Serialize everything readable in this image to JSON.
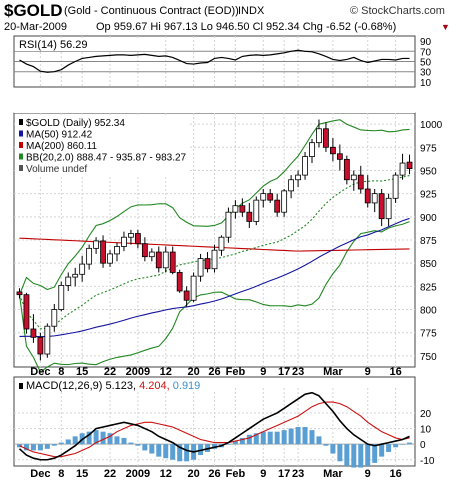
{
  "header": {
    "symbol": "$GOLD",
    "description": "(Gold - Continuous Contract (EOD))",
    "exchange": "INDX",
    "site": "© StockCharts.com",
    "date": "20-Mar-2009",
    "ohlc": "Op 959.67  Hi 967.13  Lo 946.50  Cl 952.34  Chg -6.52 (-0.68%)"
  },
  "chart_data": [
    {
      "type": "line",
      "panel": "rsi",
      "label": "RSI(14) 56.29",
      "yticks": [
        90,
        70,
        50,
        30,
        10
      ],
      "ylim": [
        0,
        100
      ],
      "ref_lines": [
        70,
        50,
        30
      ],
      "values": [
        53,
        45,
        40,
        31,
        29,
        30,
        34,
        43,
        50,
        56,
        58,
        60,
        61,
        62,
        63,
        63,
        62,
        63,
        64,
        62,
        60,
        61,
        58,
        52,
        46,
        45,
        47,
        48,
        56,
        58,
        56,
        53,
        60,
        62,
        63,
        62,
        63,
        65,
        67,
        70,
        72,
        70,
        69,
        65,
        60,
        54,
        52,
        54,
        58,
        52,
        48,
        51,
        54,
        54,
        53,
        56,
        56
      ]
    },
    {
      "type": "candlestick",
      "panel": "price",
      "legend": [
        {
          "name": "$GOLD (Daily) 952.34",
          "color": "#000000"
        },
        {
          "name": "MA(50) 912.42",
          "color": "#1515a0"
        },
        {
          "name": "MA(200) 860.11",
          "color": "#c00000"
        },
        {
          "name": "BB(20,2.0) 888.47 - 935.87 - 983.27",
          "color": "#228822"
        },
        {
          "name": "Volume undef",
          "color": "#555555"
        }
      ],
      "yticks": [
        1000,
        975,
        950,
        925,
        900,
        875,
        850,
        825,
        800,
        775,
        750
      ],
      "ylim": [
        738,
        1012
      ],
      "x_labels": [
        "Dec",
        "8",
        "15",
        "22",
        "2009",
        "12",
        "20",
        "26",
        "Feb",
        "9",
        "17",
        "23",
        "Mar",
        "9",
        "16"
      ],
      "candles": [
        [
          819,
          823,
          812,
          816
        ],
        [
          816,
          818,
          774,
          779
        ],
        [
          779,
          795,
          764,
          770
        ],
        [
          770,
          775,
          745,
          752
        ],
        [
          752,
          785,
          748,
          782
        ],
        [
          782,
          806,
          776,
          800
        ],
        [
          800,
          830,
          798,
          826
        ],
        [
          826,
          840,
          820,
          835
        ],
        [
          835,
          845,
          825,
          838
        ],
        [
          838,
          858,
          830,
          849
        ],
        [
          849,
          870,
          843,
          866
        ],
        [
          866,
          878,
          860,
          874
        ],
        [
          874,
          880,
          845,
          850
        ],
        [
          850,
          864,
          846,
          860
        ],
        [
          860,
          872,
          852,
          868
        ],
        [
          868,
          884,
          863,
          878
        ],
        [
          878,
          886,
          870,
          882
        ],
        [
          882,
          886,
          866,
          871
        ],
        [
          871,
          878,
          852,
          857
        ],
        [
          857,
          866,
          852,
          862
        ],
        [
          862,
          868,
          840,
          845
        ],
        [
          845,
          868,
          840,
          862
        ],
        [
          862,
          868,
          838,
          840
        ],
        [
          840,
          843,
          818,
          820
        ],
        [
          820,
          825,
          803,
          810
        ],
        [
          810,
          840,
          808,
          836
        ],
        [
          836,
          860,
          830,
          855
        ],
        [
          855,
          862,
          840,
          844
        ],
        [
          844,
          870,
          840,
          864
        ],
        [
          864,
          880,
          858,
          878
        ],
        [
          878,
          910,
          872,
          905
        ],
        [
          905,
          918,
          898,
          912
        ],
        [
          912,
          920,
          900,
          905
        ],
        [
          905,
          915,
          888,
          895
        ],
        [
          895,
          922,
          891,
          918
        ],
        [
          918,
          930,
          910,
          925
        ],
        [
          925,
          930,
          915,
          918
        ],
        [
          918,
          925,
          900,
          905
        ],
        [
          905,
          930,
          900,
          928
        ],
        [
          928,
          945,
          920,
          940
        ],
        [
          940,
          950,
          932,
          945
        ],
        [
          945,
          970,
          940,
          965
        ],
        [
          965,
          984,
          958,
          980
        ],
        [
          980,
          1005,
          975,
          995
        ],
        [
          995,
          1002,
          970,
          975
        ],
        [
          975,
          985,
          960,
          968
        ],
        [
          968,
          978,
          950,
          962
        ],
        [
          962,
          966,
          935,
          940
        ],
        [
          940,
          950,
          928,
          945
        ],
        [
          945,
          955,
          925,
          930
        ],
        [
          930,
          945,
          910,
          915
        ],
        [
          915,
          930,
          905,
          925
        ],
        [
          925,
          930,
          890,
          898
        ],
        [
          898,
          925,
          890,
          920
        ],
        [
          920,
          948,
          915,
          945
        ],
        [
          945,
          968,
          940,
          958
        ],
        [
          959,
          967,
          946,
          952
        ]
      ]
    },
    {
      "type": "line",
      "panel": "macd",
      "label": "MACD(12,26,9)",
      "label_values": [
        "5.123",
        "4.204",
        "0.919"
      ],
      "yticks": [
        20,
        10,
        0,
        -10
      ],
      "ylim": [
        -14,
        36
      ],
      "macd": [
        -3,
        -7,
        -9,
        -10,
        -10,
        -9,
        -7,
        -4,
        -1,
        3,
        6,
        10,
        11,
        12,
        13,
        14,
        13,
        12,
        10,
        8,
        5,
        3,
        1,
        -2,
        -4,
        -5,
        -4,
        -3,
        -2,
        -1,
        1,
        4,
        7,
        10,
        13,
        16,
        18,
        20,
        23,
        26,
        29,
        32,
        33,
        31,
        26,
        21,
        15,
        10,
        6,
        3,
        0,
        -1,
        0,
        1,
        2,
        3,
        5
      ],
      "signal": [
        -1,
        -3,
        -5,
        -6,
        -7,
        -8,
        -8,
        -7,
        -6,
        -4,
        -2,
        1,
        3,
        5,
        8,
        10,
        12,
        13,
        14,
        14,
        13,
        12,
        11,
        9,
        7,
        5,
        3,
        2,
        1,
        1,
        1,
        2,
        3,
        4,
        6,
        8,
        10,
        12,
        14,
        16,
        18,
        21,
        24,
        26,
        27,
        27,
        26,
        24,
        21,
        18,
        14,
        11,
        8,
        6,
        4,
        3,
        4
      ],
      "histogram": [
        -2,
        -4,
        -4,
        -4,
        -3,
        -1,
        1,
        3,
        5,
        7,
        8,
        9,
        8,
        7,
        5,
        4,
        1,
        -1,
        -4,
        -6,
        -8,
        -9,
        -10,
        -11,
        -11,
        -10,
        -7,
        -5,
        -3,
        -2,
        0,
        2,
        4,
        6,
        7,
        8,
        8,
        8,
        9,
        10,
        11,
        11,
        9,
        5,
        -1,
        -6,
        -11,
        -14,
        -15,
        -15,
        -14,
        -12,
        -8,
        -5,
        -2,
        0,
        1
      ]
    }
  ]
}
